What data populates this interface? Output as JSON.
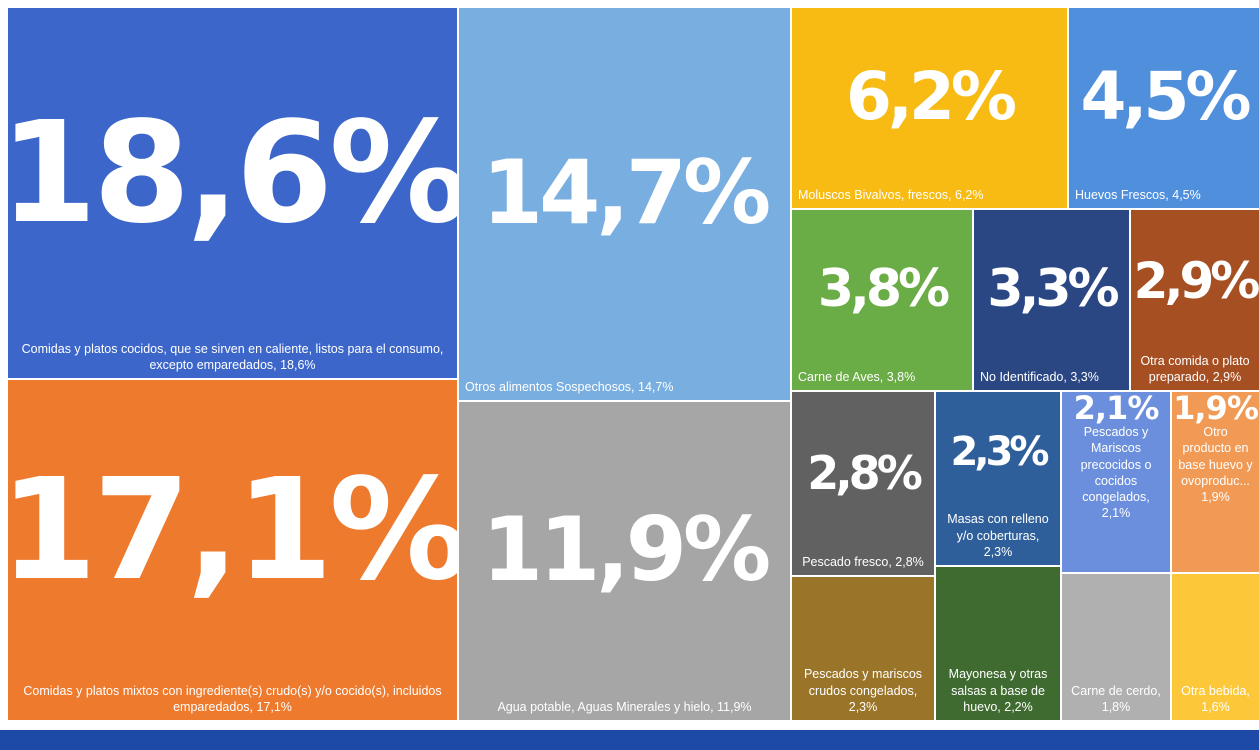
{
  "chart_data": {
    "type": "treemap",
    "categories": [
      "Comidas y platos cocidos, que se sirven en caliente, listos para el consumo, excepto emparedados, 18,6%",
      "Comidas y platos mixtos con ingrediente(s) crudo(s) y/o cocido(s), incluidos emparedados, 17,1%",
      "Otros alimentos Sospechosos, 14,7%",
      "Agua potable, Aguas Minerales y hielo, 11,9%",
      "Moluscos Bivalvos, frescos, 6,2%",
      "Huevos Frescos, 4,5%",
      "Carne de Aves, 3,8%",
      "No Identificado, 3,3%",
      "Otra comida o plato preparado, 2,9%",
      "Pescado fresco, 2,8%",
      "Masas con relleno y/o coberturas, 2,3%",
      "Pescados y Mariscos precocidos o cocidos congelados, 2,1%",
      "Otro producto en base huevo y ovoproduc... 1,9%",
      "Pescados y mariscos crudos congelados, 2,3%",
      "Mayonesa y otras salsas a base de huevo, 2,2%",
      "Carne de cerdo, 1,8%",
      "Otra bebida, 1,6%"
    ],
    "values": [
      18.6,
      17.1,
      14.7,
      11.9,
      6.2,
      4.5,
      3.8,
      3.3,
      2.9,
      2.8,
      2.3,
      2.1,
      1.9,
      2.3,
      2.2,
      1.8,
      1.6
    ],
    "value_labels": [
      "18,6%",
      "17,1%",
      "14,7%",
      "11,9%",
      "6,2%",
      "4,5%",
      "3,8%",
      "3,3%",
      "2,9%",
      "2,8%",
      "2,3%",
      "2,1%",
      "1,9%",
      null,
      null,
      null,
      null
    ],
    "colors": [
      "#3c66c9",
      "#ee7a2e",
      "#79aee0",
      "#a6a6a6",
      "#f7bb14",
      "#4f8fdc",
      "#6aac45",
      "#2a4784",
      "#a64f23",
      "#616161",
      "#2f5f9a",
      "#6b8fdc",
      "#f19a55",
      "#9a7428",
      "#3f6b30",
      "#b0b0b0",
      "#fcc83a"
    ]
  }
}
